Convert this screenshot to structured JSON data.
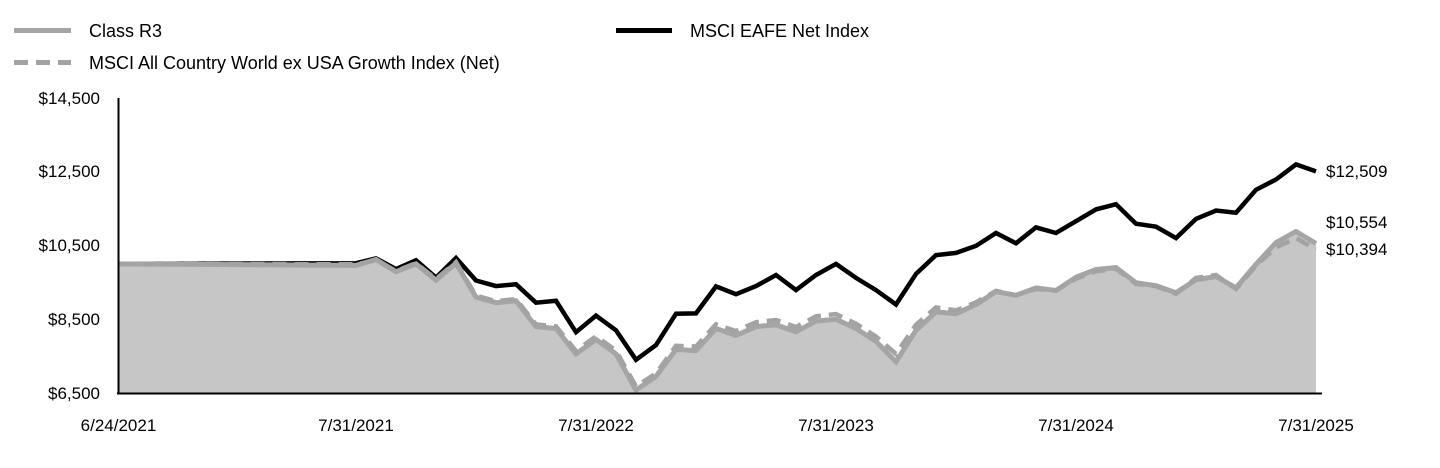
{
  "legend": {
    "items": [
      {
        "label": "Class R3",
        "series_id": "class-r3",
        "style": "solid",
        "color": "#a5a5a5"
      },
      {
        "label": "MSCI All Country World ex USA Growth Index (Net)",
        "series_id": "acwi-growth",
        "style": "dashed",
        "color": "#a5a5a5"
      },
      {
        "label": "MSCI EAFE Net Index",
        "series_id": "msci-eafe",
        "style": "solid",
        "color": "#000000"
      }
    ]
  },
  "chart_data": {
    "type": "area",
    "grid": "off",
    "legend_position": "top",
    "y_tick_labels": [
      "$14,500",
      "$12,500",
      "$10,500",
      "$8,500",
      "$6,500"
    ],
    "y_tick_values": [
      14500,
      12500,
      10500,
      8500,
      6500
    ],
    "y_range": [
      6500,
      14500
    ],
    "x_tick_labels": [
      "6/24/2021",
      "7/31/2021",
      "7/31/2022",
      "7/31/2023",
      "7/31/2024",
      "7/31/2025"
    ],
    "x_tick_point_indices": [
      0,
      1,
      13,
      25,
      37,
      49
    ],
    "point_frequency": "inception date then monthly through 7/31/2025",
    "series": [
      {
        "id": "msci-eafe",
        "name": "MSCI EAFE Net Index",
        "color": "#000000",
        "style": "solid",
        "fill": false,
        "end_label": "$12,509",
        "end_value": 12509,
        "values": [
          10000,
          10020,
          10150,
          9860,
          10100,
          9630,
          10160,
          9550,
          9400,
          9450,
          8950,
          9000,
          8150,
          8600,
          8200,
          7400,
          7800,
          8650,
          8660,
          9390,
          9180,
          9400,
          9700,
          9290,
          9700,
          10000,
          9620,
          9290,
          8900,
          9730,
          10240,
          10300,
          10490,
          10840,
          10560,
          10990,
          10840,
          11160,
          11480,
          11620,
          11090,
          11010,
          10700,
          11220,
          11450,
          11390,
          12010,
          12290,
          12700,
          12509
        ]
      },
      {
        "id": "class-r3",
        "name": "Class R3",
        "color": "#a5a5a5",
        "style": "solid",
        "fill": true,
        "fill_color": "#c6c6c6",
        "end_label": "$10,554",
        "end_value": 10554,
        "values": [
          10000,
          9960,
          10120,
          9790,
          10000,
          9560,
          10020,
          9100,
          8950,
          9000,
          8300,
          8250,
          7560,
          7950,
          7560,
          6580,
          6950,
          7680,
          7650,
          8250,
          8060,
          8300,
          8350,
          8160,
          8450,
          8500,
          8250,
          7900,
          7350,
          8200,
          8700,
          8650,
          8900,
          9250,
          9150,
          9350,
          9280,
          9640,
          9850,
          9900,
          9490,
          9410,
          9220,
          9570,
          9660,
          9350,
          9990,
          10580,
          10880,
          10554
        ]
      },
      {
        "id": "acwi-growth",
        "name": "MSCI All Country World ex USA Growth Index (Net)",
        "color": "#a3a3a3",
        "style": "dashed",
        "fill": false,
        "end_label": "$10,394",
        "end_value": 10394,
        "values": [
          10000,
          9990,
          10100,
          9810,
          10020,
          9590,
          10050,
          9140,
          8990,
          9050,
          8360,
          8310,
          7640,
          8040,
          7650,
          6680,
          7030,
          7780,
          7760,
          8360,
          8180,
          8420,
          8480,
          8290,
          8580,
          8640,
          8380,
          8030,
          7560,
          8350,
          8820,
          8740,
          8960,
          9270,
          9150,
          9320,
          9280,
          9600,
          9800,
          9870,
          9460,
          9400,
          9190,
          9620,
          9700,
          9320,
          9950,
          10450,
          10700,
          10394
        ]
      }
    ]
  }
}
